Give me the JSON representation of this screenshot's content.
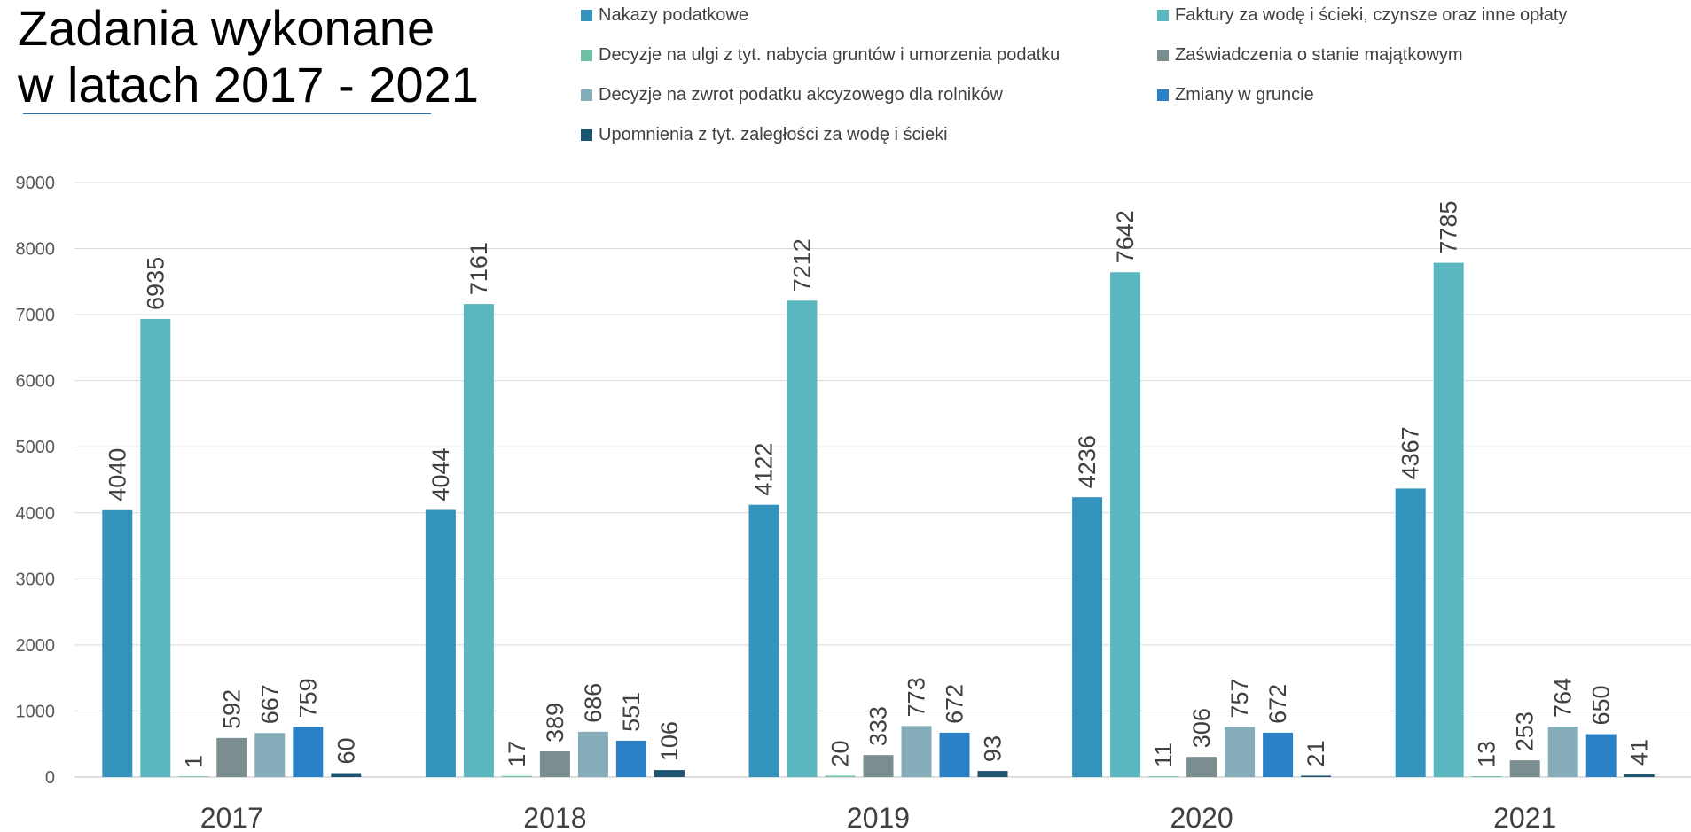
{
  "title": {
    "line1": "Zadania wykonane",
    "line2": "w latach 2017 - 2021"
  },
  "chart_data": {
    "type": "bar",
    "categories": [
      "2017",
      "2018",
      "2019",
      "2020",
      "2021"
    ],
    "ylim": [
      0,
      9000
    ],
    "yticks": [
      0,
      1000,
      2000,
      3000,
      4000,
      5000,
      6000,
      7000,
      8000,
      9000
    ],
    "grid": true,
    "legend_position": "top",
    "series": [
      {
        "name": "Nakazy podatkowe",
        "color": "#3594bd",
        "values": [
          4040,
          4044,
          4122,
          4236,
          4367
        ]
      },
      {
        "name": "Faktury za wodę i ścieki, czynsze oraz inne opłaty",
        "color": "#5ab7c0",
        "values": [
          6935,
          7161,
          7212,
          7642,
          7785
        ]
      },
      {
        "name": "Decyzje na ulgi z tyt. nabycia gruntów i umorzenia podatku",
        "color": "#6fc0a4",
        "values": [
          1,
          17,
          20,
          11,
          13
        ]
      },
      {
        "name": "Zaświadczenia o stanie majątkowym",
        "color": "#7a8d8f",
        "values": [
          592,
          389,
          333,
          306,
          253
        ]
      },
      {
        "name": "Decyzje na zwrot podatku akcyzowego dla rolników",
        "color": "#84adb9",
        "values": [
          667,
          686,
          773,
          757,
          764
        ]
      },
      {
        "name": "Zmiany w gruncie",
        "color": "#2a81c8",
        "values": [
          759,
          551,
          672,
          672,
          650
        ]
      },
      {
        "name": "Upomnienia z tyt. zaległości za wodę i ścieki",
        "color": "#1d5470",
        "values": [
          60,
          106,
          93,
          21,
          41
        ]
      }
    ]
  }
}
